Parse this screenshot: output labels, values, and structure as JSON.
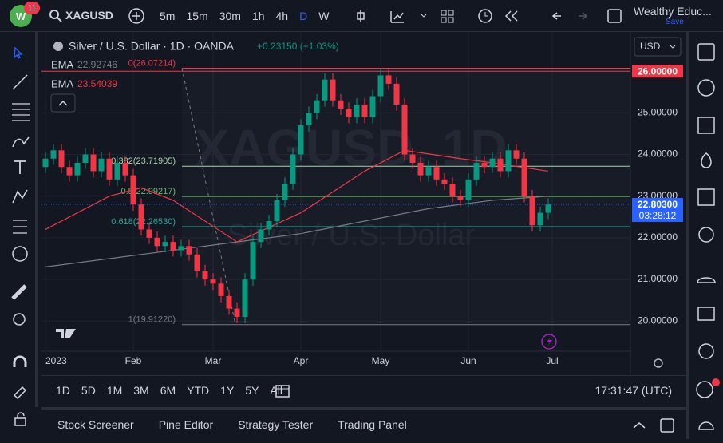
{
  "top_bar": {
    "badge": "11",
    "symbol": "XAGUSD",
    "intervals": [
      "5m",
      "15m",
      "30m",
      "1h",
      "4h",
      "D",
      "W"
    ],
    "active_interval": "D",
    "account": "Wealthy Educ...",
    "save": "Save"
  },
  "legend": {
    "title": "Silver / U.S. Dollar · 1D · OANDA",
    "change": "+0.23150 (+1.03%)",
    "ema": [
      {
        "name": "EMA",
        "value": "22.92746",
        "color": "#787b86"
      },
      {
        "name": "EMA",
        "value": "23.54039",
        "color": "#f23645"
      }
    ]
  },
  "currency": "USD",
  "watermark": {
    "symbol": "XAGUSD, 1D",
    "description": "Silver / U.S. Dollar"
  },
  "chart_data": {
    "type": "candlestick",
    "up_color": "#089981",
    "down_color": "#f23645",
    "ohlc": [
      [
        23.7,
        24.05,
        23.55,
        23.9
      ],
      [
        23.9,
        24.25,
        23.75,
        24.1
      ],
      [
        24.1,
        24.25,
        23.55,
        23.7
      ],
      [
        23.7,
        23.85,
        23.35,
        23.5
      ],
      [
        23.5,
        23.95,
        23.35,
        23.8
      ],
      [
        23.8,
        24.15,
        23.65,
        24.0
      ],
      [
        24.0,
        24.15,
        23.45,
        23.6
      ],
      [
        23.6,
        24.05,
        23.45,
        23.9
      ],
      [
        23.9,
        24.05,
        23.25,
        23.4
      ],
      [
        23.4,
        23.95,
        23.25,
        23.8
      ],
      [
        23.8,
        23.95,
        23.35,
        23.5
      ],
      [
        23.5,
        23.65,
        22.65,
        22.8
      ],
      [
        22.8,
        22.95,
        22.05,
        22.2
      ],
      [
        22.2,
        22.35,
        21.85,
        22.0
      ],
      [
        22.0,
        22.15,
        21.65,
        21.8
      ],
      [
        21.8,
        22.05,
        21.65,
        21.9
      ],
      [
        21.9,
        22.05,
        21.55,
        21.7
      ],
      [
        21.7,
        21.95,
        21.55,
        21.8
      ],
      [
        21.8,
        21.95,
        21.45,
        21.6
      ],
      [
        21.6,
        21.75,
        21.05,
        21.2
      ],
      [
        21.2,
        21.35,
        20.85,
        21.0
      ],
      [
        21.0,
        21.15,
        20.75,
        20.9
      ],
      [
        20.9,
        21.05,
        20.45,
        20.6
      ],
      [
        20.6,
        20.75,
        20.15,
        20.3
      ],
      [
        20.3,
        20.45,
        19.95,
        20.1
      ],
      [
        20.1,
        21.15,
        19.95,
        21.0
      ],
      [
        21.0,
        22.05,
        20.85,
        21.9
      ],
      [
        21.9,
        22.35,
        21.75,
        22.2
      ],
      [
        22.2,
        22.55,
        22.05,
        22.4
      ],
      [
        22.4,
        23.05,
        22.25,
        22.9
      ],
      [
        22.9,
        23.45,
        22.75,
        23.3
      ],
      [
        23.3,
        24.15,
        23.15,
        24.0
      ],
      [
        24.0,
        24.85,
        23.85,
        24.7
      ],
      [
        24.7,
        25.15,
        24.55,
        25.0
      ],
      [
        25.0,
        25.45,
        24.85,
        25.3
      ],
      [
        25.3,
        25.95,
        25.15,
        25.8
      ],
      [
        25.8,
        25.95,
        25.15,
        25.3
      ],
      [
        25.3,
        25.45,
        24.95,
        25.1
      ],
      [
        25.1,
        25.25,
        24.75,
        24.9
      ],
      [
        24.9,
        25.35,
        24.75,
        25.2
      ],
      [
        25.2,
        25.35,
        24.75,
        24.9
      ],
      [
        24.9,
        25.55,
        24.75,
        25.4
      ],
      [
        25.4,
        26.05,
        25.25,
        25.9
      ],
      [
        25.9,
        26.05,
        25.55,
        25.7
      ],
      [
        25.7,
        25.85,
        25.05,
        25.2
      ],
      [
        25.2,
        25.35,
        23.85,
        24.0
      ],
      [
        24.0,
        24.15,
        23.65,
        23.8
      ],
      [
        23.8,
        23.95,
        23.35,
        23.5
      ],
      [
        23.5,
        23.85,
        23.35,
        23.7
      ],
      [
        23.7,
        23.85,
        23.25,
        23.4
      ],
      [
        23.4,
        23.55,
        23.15,
        23.3
      ],
      [
        23.3,
        23.45,
        22.85,
        23.0
      ],
      [
        23.0,
        23.15,
        22.75,
        22.9
      ],
      [
        22.9,
        23.55,
        22.75,
        23.4
      ],
      [
        23.4,
        23.95,
        23.25,
        23.8
      ],
      [
        23.8,
        23.95,
        23.55,
        23.7
      ],
      [
        23.7,
        24.05,
        23.55,
        23.9
      ],
      [
        23.9,
        24.05,
        23.45,
        23.6
      ],
      [
        23.6,
        24.25,
        23.45,
        24.1
      ],
      [
        24.1,
        24.25,
        23.75,
        23.9
      ],
      [
        23.9,
        24.05,
        22.85,
        23.0
      ],
      [
        23.0,
        23.15,
        22.15,
        22.3
      ],
      [
        22.3,
        22.75,
        22.15,
        22.6
      ],
      [
        22.6,
        22.95,
        22.45,
        22.8
      ]
    ],
    "lines": [
      {
        "name": "EMA",
        "color": "#787b86",
        "x": [
          0,
          8,
          16,
          24,
          32,
          40,
          48,
          56,
          63
        ],
        "values": [
          21.3,
          21.5,
          21.7,
          21.9,
          22.1,
          22.4,
          22.7,
          22.9,
          23.0
        ]
      },
      {
        "name": "EMA",
        "color": "#f23645",
        "x": [
          0,
          8,
          12,
          16,
          24,
          32,
          40,
          45,
          52,
          56,
          63
        ],
        "values": [
          22.2,
          23.0,
          23.2,
          22.9,
          21.9,
          22.6,
          23.6,
          24.1,
          23.9,
          23.8,
          23.6
        ]
      }
    ],
    "xlim": [
      -0.5,
      73.3
    ],
    "xticks": [
      {
        "value": 0,
        "label": "2023"
      },
      {
        "value": 11,
        "label": "Feb"
      },
      {
        "value": 21,
        "label": "Mar"
      },
      {
        "value": 32,
        "label": "Apr"
      },
      {
        "value": 42,
        "label": "May"
      },
      {
        "value": 53,
        "label": "Jun"
      },
      {
        "value": 63.5,
        "label": "Jul"
      }
    ],
    "ylim": [
      19.18,
      26.79
    ],
    "yticks": [
      {
        "value": 20,
        "label": "20.00000"
      },
      {
        "value": 21,
        "label": "21.00000"
      },
      {
        "value": 22,
        "label": "22.00000"
      },
      {
        "value": 23,
        "label": "23.00000"
      },
      {
        "value": 24,
        "label": "24.00000"
      },
      {
        "value": 25,
        "label": "25.00000"
      }
    ],
    "fib_levels": [
      {
        "value": 26.07214,
        "label": "0(26.07214)",
        "color": "#f23645"
      },
      {
        "value": 23.71905,
        "label": "0.382(23.71905)",
        "color": "#a5d6a7"
      },
      {
        "value": 22.99217,
        "label": "0.5(22.99217)",
        "color": "#66bb6a"
      },
      {
        "value": 22.2653,
        "label": "0.618(22.26530)",
        "color": "#26a69a"
      },
      {
        "value": 19.9122,
        "label": "1(19.91220)",
        "color": "#787b86"
      }
    ],
    "horizontal_line": {
      "value": 26,
      "label": "26.00000",
      "color": "#f23645"
    },
    "last_price": {
      "value": 22.803,
      "label": "22.80300",
      "countdown": "03:28:12",
      "color": "#2962ff"
    }
  },
  "bottom_bar": {
    "ranges": [
      "1D",
      "5D",
      "1M",
      "3M",
      "6M",
      "YTD",
      "1Y",
      "5Y",
      "All"
    ],
    "clock": "17:31:47 (UTC)"
  },
  "tabs": [
    "Stock Screener",
    "Pine Editor",
    "Strategy Tester",
    "Trading Panel"
  ]
}
